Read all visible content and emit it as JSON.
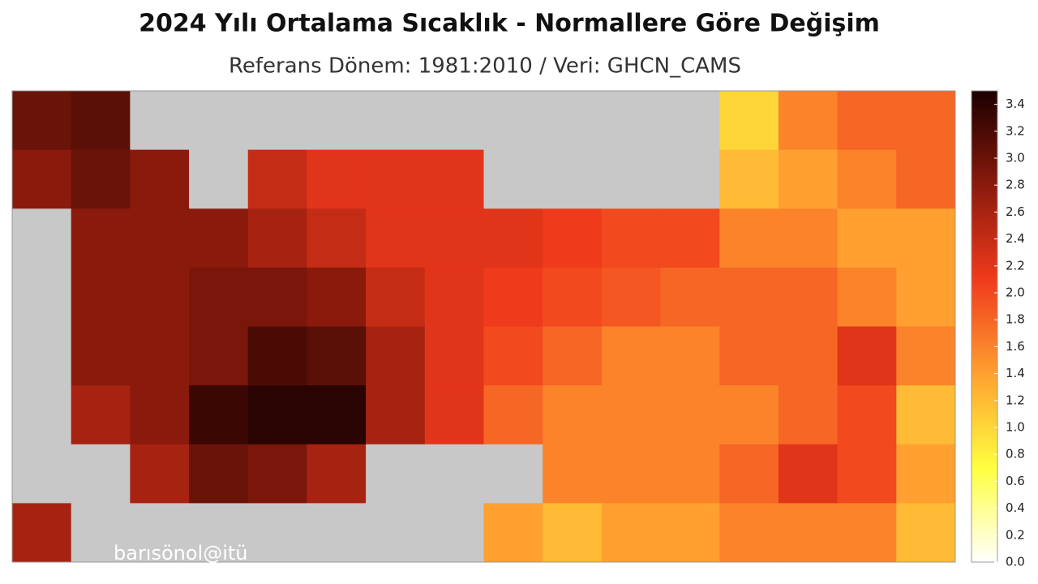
{
  "chart_data": {
    "type": "heatmap",
    "title": "2024 Yılı Ortalama Sıcaklık - Normallere Göre Değişim",
    "subtitle": "Referans Dönem: 1981:2010 / Veri: GHCN_CAMS",
    "watermark": "barısönol@itü",
    "values": [
      [
        3.0,
        3.1,
        null,
        null,
        null,
        null,
        null,
        null,
        null,
        null,
        null,
        null,
        1.0,
        1.6,
        1.8,
        1.8
      ],
      [
        2.8,
        3.0,
        2.8,
        null,
        2.4,
        2.2,
        2.2,
        2.2,
        null,
        null,
        null,
        null,
        1.2,
        1.4,
        1.6,
        1.8
      ],
      [
        null,
        2.8,
        2.8,
        2.8,
        2.6,
        2.4,
        2.2,
        2.2,
        2.2,
        2.1,
        2.0,
        2.0,
        1.6,
        1.6,
        1.4,
        1.4
      ],
      [
        null,
        2.8,
        2.8,
        2.9,
        2.9,
        2.8,
        2.4,
        2.2,
        2.1,
        2.0,
        1.9,
        1.8,
        1.8,
        1.8,
        1.6,
        1.4
      ],
      [
        null,
        2.8,
        2.8,
        2.9,
        3.2,
        3.1,
        2.6,
        2.2,
        2.0,
        1.8,
        1.6,
        1.6,
        1.8,
        1.8,
        2.2,
        1.6
      ],
      [
        null,
        2.6,
        2.8,
        3.3,
        3.4,
        3.4,
        2.6,
        2.2,
        1.8,
        1.6,
        1.6,
        1.6,
        1.6,
        1.8,
        2.0,
        1.2
      ],
      [
        null,
        null,
        2.6,
        3.0,
        2.9,
        2.6,
        null,
        null,
        null,
        1.6,
        1.6,
        1.6,
        1.8,
        2.2,
        2.0,
        1.4
      ],
      [
        2.6,
        null,
        null,
        null,
        null,
        null,
        null,
        null,
        1.4,
        1.2,
        1.4,
        1.4,
        1.6,
        1.6,
        1.6,
        1.2
      ]
    ],
    "colorscale": [
      "#ffffff",
      "#ffff40",
      "#ffa030",
      "#f03a1c",
      "#8a1a0c",
      "#1a0000"
    ],
    "missing_color": "#c8c8c8",
    "clim": [
      0,
      3.5
    ],
    "cticks": [
      {
        "value": 0,
        "label": "0.0"
      },
      {
        "value": 0.2,
        "label": "0.2"
      },
      {
        "value": 0.4,
        "label": "0.4"
      },
      {
        "value": 0.6,
        "label": "0.6"
      },
      {
        "value": 0.8,
        "label": "0.8"
      },
      {
        "value": 1,
        "label": "1.0"
      },
      {
        "value": 1.2,
        "label": "1.2"
      },
      {
        "value": 1.4,
        "label": "1.4"
      },
      {
        "value": 1.6,
        "label": "1.6"
      },
      {
        "value": 1.8,
        "label": "1.8"
      },
      {
        "value": 2,
        "label": "2.0"
      },
      {
        "value": 2.2,
        "label": "2.2"
      },
      {
        "value": 2.4,
        "label": "2.4"
      },
      {
        "value": 2.6,
        "label": "2.6"
      },
      {
        "value": 2.8,
        "label": "2.8"
      },
      {
        "value": 3,
        "label": "3.0"
      },
      {
        "value": 3.2,
        "label": "3.2"
      },
      {
        "value": 3.4,
        "label": "3.4"
      }
    ]
  }
}
